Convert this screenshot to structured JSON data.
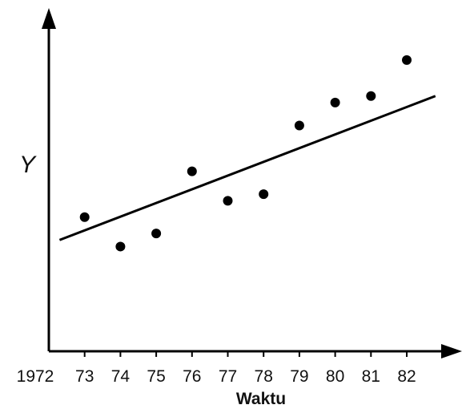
{
  "chart_data": {
    "type": "scatter",
    "title": "",
    "xlabel": "Waktu",
    "ylabel": "Y",
    "origin_label": "1972",
    "x_ticks": [
      "73",
      "74",
      "75",
      "76",
      "77",
      "78",
      "79",
      "80",
      "81",
      "82"
    ],
    "xlim": [
      1972,
      1982.8
    ],
    "ylim": [
      0,
      10
    ],
    "grid": false,
    "legend": "none",
    "series": [
      {
        "x": [
          1973,
          1974,
          1975,
          1976,
          1977,
          1978,
          1979,
          1980,
          1981,
          1982
        ],
        "y": [
          4.1,
          3.2,
          3.6,
          5.5,
          4.6,
          4.8,
          6.9,
          7.6,
          7.8,
          8.9
        ]
      }
    ],
    "trend_line": {
      "x": [
        1972.3,
        1982.8
      ],
      "y": [
        3.4,
        7.8
      ]
    },
    "colors": {
      "points": "#000000",
      "line": "#000000",
      "axes": "#000000"
    }
  }
}
